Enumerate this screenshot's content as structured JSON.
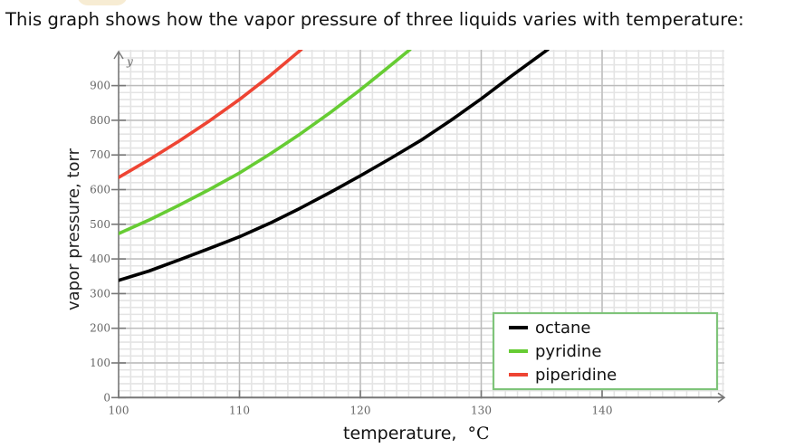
{
  "prompt": "This graph shows how the vapor pressure of three liquids varies with temperature:",
  "chart_data": {
    "type": "line",
    "title": "",
    "xlabel": "temperature,",
    "xlabel_unit": "°C",
    "ylabel": "vapor pressure, torr",
    "y_axis_letter": "y",
    "xlim": [
      100,
      150
    ],
    "ylim": [
      0,
      1000
    ],
    "x_ticks": [
      100,
      110,
      120,
      130,
      140
    ],
    "y_ticks": [
      0,
      100,
      200,
      300,
      400,
      500,
      600,
      700,
      800,
      900
    ],
    "x_minor_step": 1,
    "y_minor_step": 20,
    "grid": true,
    "legend_position": "lower right",
    "series": [
      {
        "name": "octane",
        "color": "#000000",
        "points": [
          [
            100,
            338
          ],
          [
            102.5,
            365
          ],
          [
            105,
            397
          ],
          [
            107.5,
            430
          ],
          [
            110,
            464
          ],
          [
            112.5,
            503
          ],
          [
            115,
            546
          ],
          [
            117.5,
            592
          ],
          [
            120,
            640
          ],
          [
            122.5,
            690
          ],
          [
            125,
            742
          ],
          [
            127.5,
            800
          ],
          [
            130,
            862
          ],
          [
            132.5,
            928
          ],
          [
            135.5,
            1004
          ]
        ]
      },
      {
        "name": "pyridine",
        "color": "#66cc33",
        "points": [
          [
            100,
            473
          ],
          [
            102.5,
            512
          ],
          [
            105,
            555
          ],
          [
            107.5,
            600
          ],
          [
            110,
            648
          ],
          [
            112.5,
            702
          ],
          [
            115,
            760
          ],
          [
            117.5,
            822
          ],
          [
            120,
            888
          ],
          [
            122,
            944
          ],
          [
            124.1,
            1004
          ]
        ]
      },
      {
        "name": "piperidine",
        "color": "#ee4433",
        "points": [
          [
            100,
            635
          ],
          [
            102.5,
            686
          ],
          [
            105,
            740
          ],
          [
            107.5,
            798
          ],
          [
            110,
            860
          ],
          [
            112.5,
            928
          ],
          [
            115.1,
            1004
          ]
        ]
      }
    ]
  },
  "colors": {
    "legend_border": "#7fc47a",
    "axis": "#777777",
    "grid_major": "#bbbbbb",
    "grid_minor": "#e4e4e4"
  }
}
